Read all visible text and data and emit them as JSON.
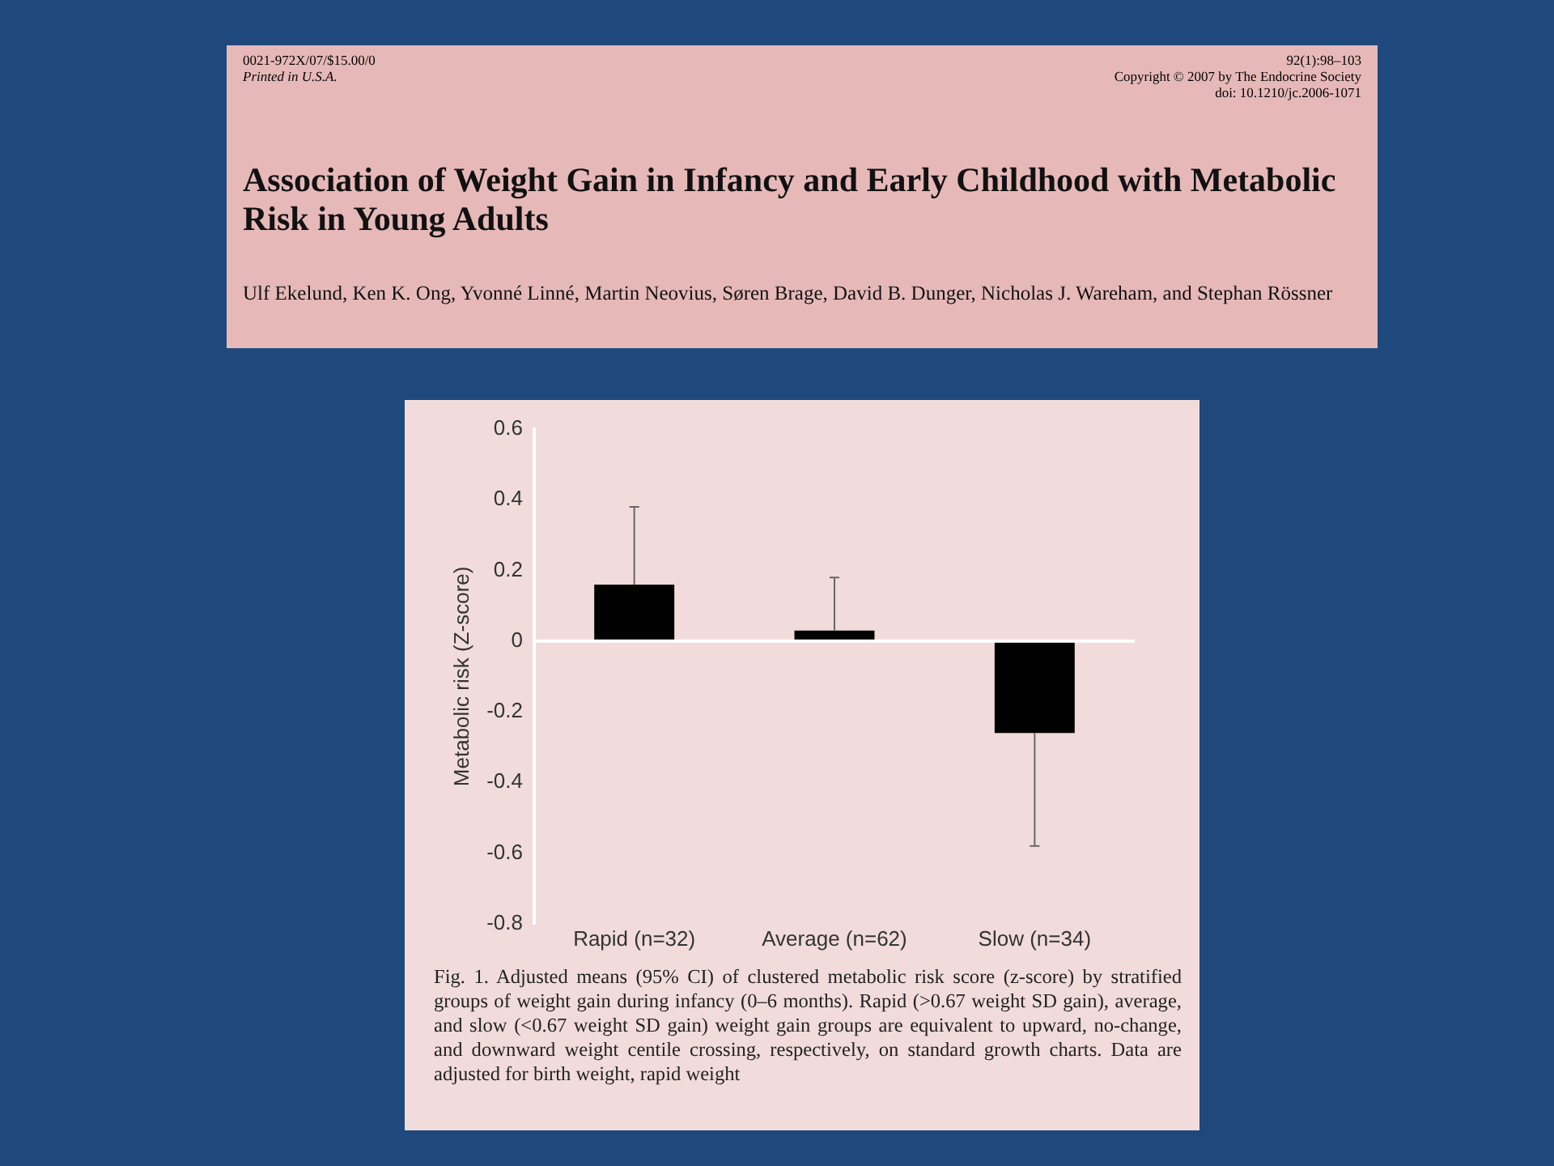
{
  "chart_data": {
    "type": "bar",
    "title": "Association of Weight Gain in Infancy and Early Childhood with Metabolic Risk in Young Adults",
    "subtitle": "Ulf Ekelund, Ken K. Ong, Yvonné Linné, Martin Neovius, Søren Brage, David B. Dunger, Nicholas J. Wareham, and Stephan Rössner",
    "ylabel": "Metabolic risk (Z-score)",
    "categories": [
      "Rapid (n=32)",
      "Average (n=62)",
      "Slow (n=34)"
    ],
    "values": [
      0.16,
      0.03,
      -0.26
    ],
    "errors": [
      [
        0.16,
        0.38
      ],
      [
        0.03,
        0.18
      ],
      [
        -0.58,
        -0.26
      ]
    ],
    "color": "#000000",
    "ylim": [
      -0.8,
      0.6
    ],
    "yticks": [
      -0.8,
      -0.6,
      -0.4,
      -0.2,
      0,
      0.2,
      0.4,
      0.6
    ],
    "annotations": [
      "0021-972X/07/$15.00/0",
      "Printed in U.S.A.",
      "92(1):98–103",
      "Copyright © 2007 by The Endocrine Society",
      "doi: 10.1210/jc.2006-1071",
      "Fig. 1. Adjusted means (95% CI) of clustered metabolic risk score (z-score) by stratified groups of weight gain during infancy (0–6 months). Rapid (>0.67 weight SD gain), average, and slow (<0.67 weight SD gain) weight gain groups are equivalent to upward, no-change, and downward weight centile crossing, respectively, on standard growth charts. Data are adjusted for birth weight, rapid weight"
    ]
  }
}
